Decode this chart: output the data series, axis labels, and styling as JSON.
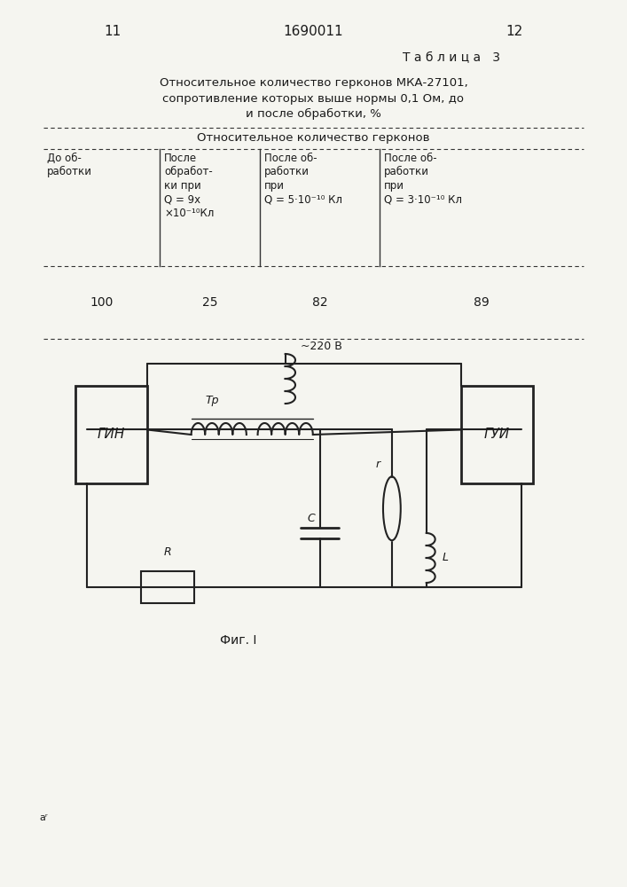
{
  "page_num_left": "11",
  "patent_num": "1690011",
  "page_num_right": "12",
  "table_label": "Т а б л и ц а   3",
  "table_title_line1": "Относительное количество герконов МКА-27101,",
  "table_title_line2": "сопротивление которых выше нормы 0,1 Ом, до",
  "table_title_line3": "и после обработки, %",
  "col_header_main": "Относительное количество герконов",
  "col1_header_line1": "До об-",
  "col1_header_line2": "работки",
  "col2_header_line1": "После",
  "col2_header_line2": "обработ-",
  "col2_header_line3": "ки при",
  "col2_header_line4": "Q = 9x",
  "col2_header_line5": "×10⁻¹⁰Кл",
  "col3_header_line1": "После об-",
  "col3_header_line2": "работки",
  "col3_header_line3": "при",
  "col3_header_line4": "Q = 5·10⁻¹⁰ Кл",
  "col4_header_line1": "После об-",
  "col4_header_line2": "работки",
  "col4_header_line3": "при",
  "col4_header_line4": "Q = 3·10⁻¹⁰ Кл",
  "data_values": [
    "100",
    "25",
    "82",
    "89"
  ],
  "fig_caption": "Фиг. I",
  "bg_color": "#f5f5f0",
  "text_color": "#1a1a1a",
  "line_color": "#333333"
}
